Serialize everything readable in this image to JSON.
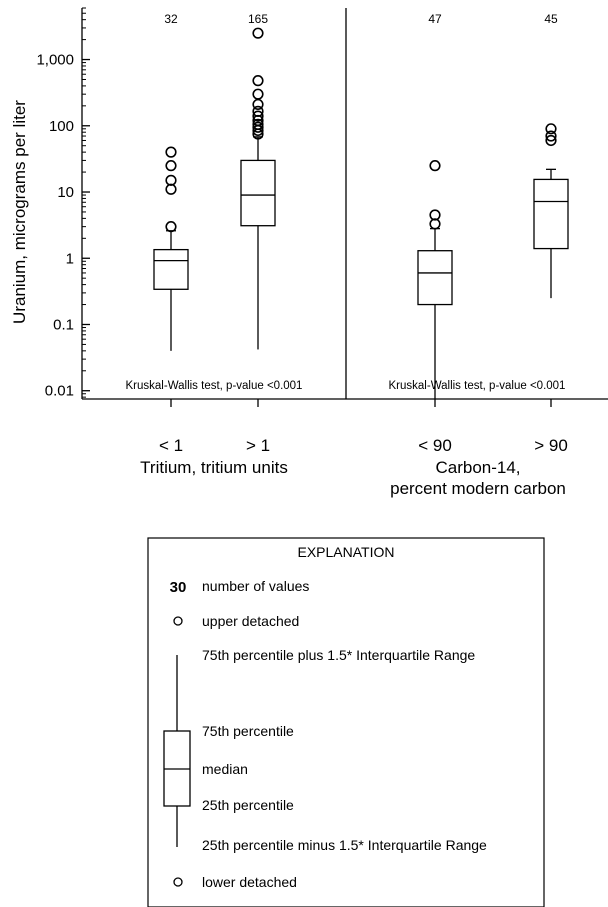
{
  "chart_data": {
    "type": "boxplot",
    "y_scale": "log",
    "ylabel": "Uranium, micrograms per liter",
    "ylim": [
      0.0075,
      6000
    ],
    "y_ticks": [
      {
        "value": 0.01,
        "label": "0.01"
      },
      {
        "value": 0.1,
        "label": "0.1"
      },
      {
        "value": 1,
        "label": "1"
      },
      {
        "value": 10,
        "label": "10"
      },
      {
        "value": 100,
        "label": "100"
      },
      {
        "value": 1000,
        "label": "1,000"
      }
    ],
    "panels": [
      {
        "xlabel_lines": [
          "Tritium, tritium units"
        ],
        "test_label": "Kruskal-Wallis test, p-value <0.001",
        "groups": [
          {
            "label": "< 1",
            "count": "32",
            "whisker_low": 0.04,
            "q1": 0.34,
            "median": 0.92,
            "q3": 1.35,
            "whisker_high": 2.6,
            "outliers": [
              3,
              11,
              15,
              25,
              40
            ]
          },
          {
            "label": "> 1",
            "count": "165",
            "whisker_low": 0.042,
            "q1": 3.1,
            "median": 9,
            "q3": 30,
            "whisker_high": 68,
            "outliers": [
              75,
              85,
              95,
              105,
              120,
              140,
              165,
              210,
              300,
              480,
              2500
            ]
          }
        ]
      },
      {
        "xlabel_lines": [
          "Carbon-14,",
          "percent modern carbon"
        ],
        "test_label": "Kruskal-Wallis test, p-value <0.001",
        "groups": [
          {
            "label": "< 90",
            "count": "47",
            "whisker_low": 0.0075,
            "q1": 0.2,
            "median": 0.6,
            "q3": 1.3,
            "whisker_high": 2.8,
            "outliers": [
              3.3,
              4.5,
              25
            ]
          },
          {
            "label": "> 90",
            "count": "45",
            "whisker_low": 0.25,
            "q1": 1.4,
            "median": 7.2,
            "q3": 15.5,
            "whisker_high": 22,
            "outliers": [
              60,
              70,
              90
            ]
          }
        ]
      }
    ]
  },
  "legend": {
    "title": "EXPLANATION",
    "count_example": "30",
    "count_text": "number of values",
    "upper_detached": "upper detached",
    "upper_whisker": "75th percentile plus 1.5* Interquartile Range",
    "q3": "75th percentile",
    "median": "median",
    "q1": "25th percentile",
    "lower_whisker": "25th percentile minus 1.5* Interquartile Range",
    "lower_detached": "lower detached"
  }
}
